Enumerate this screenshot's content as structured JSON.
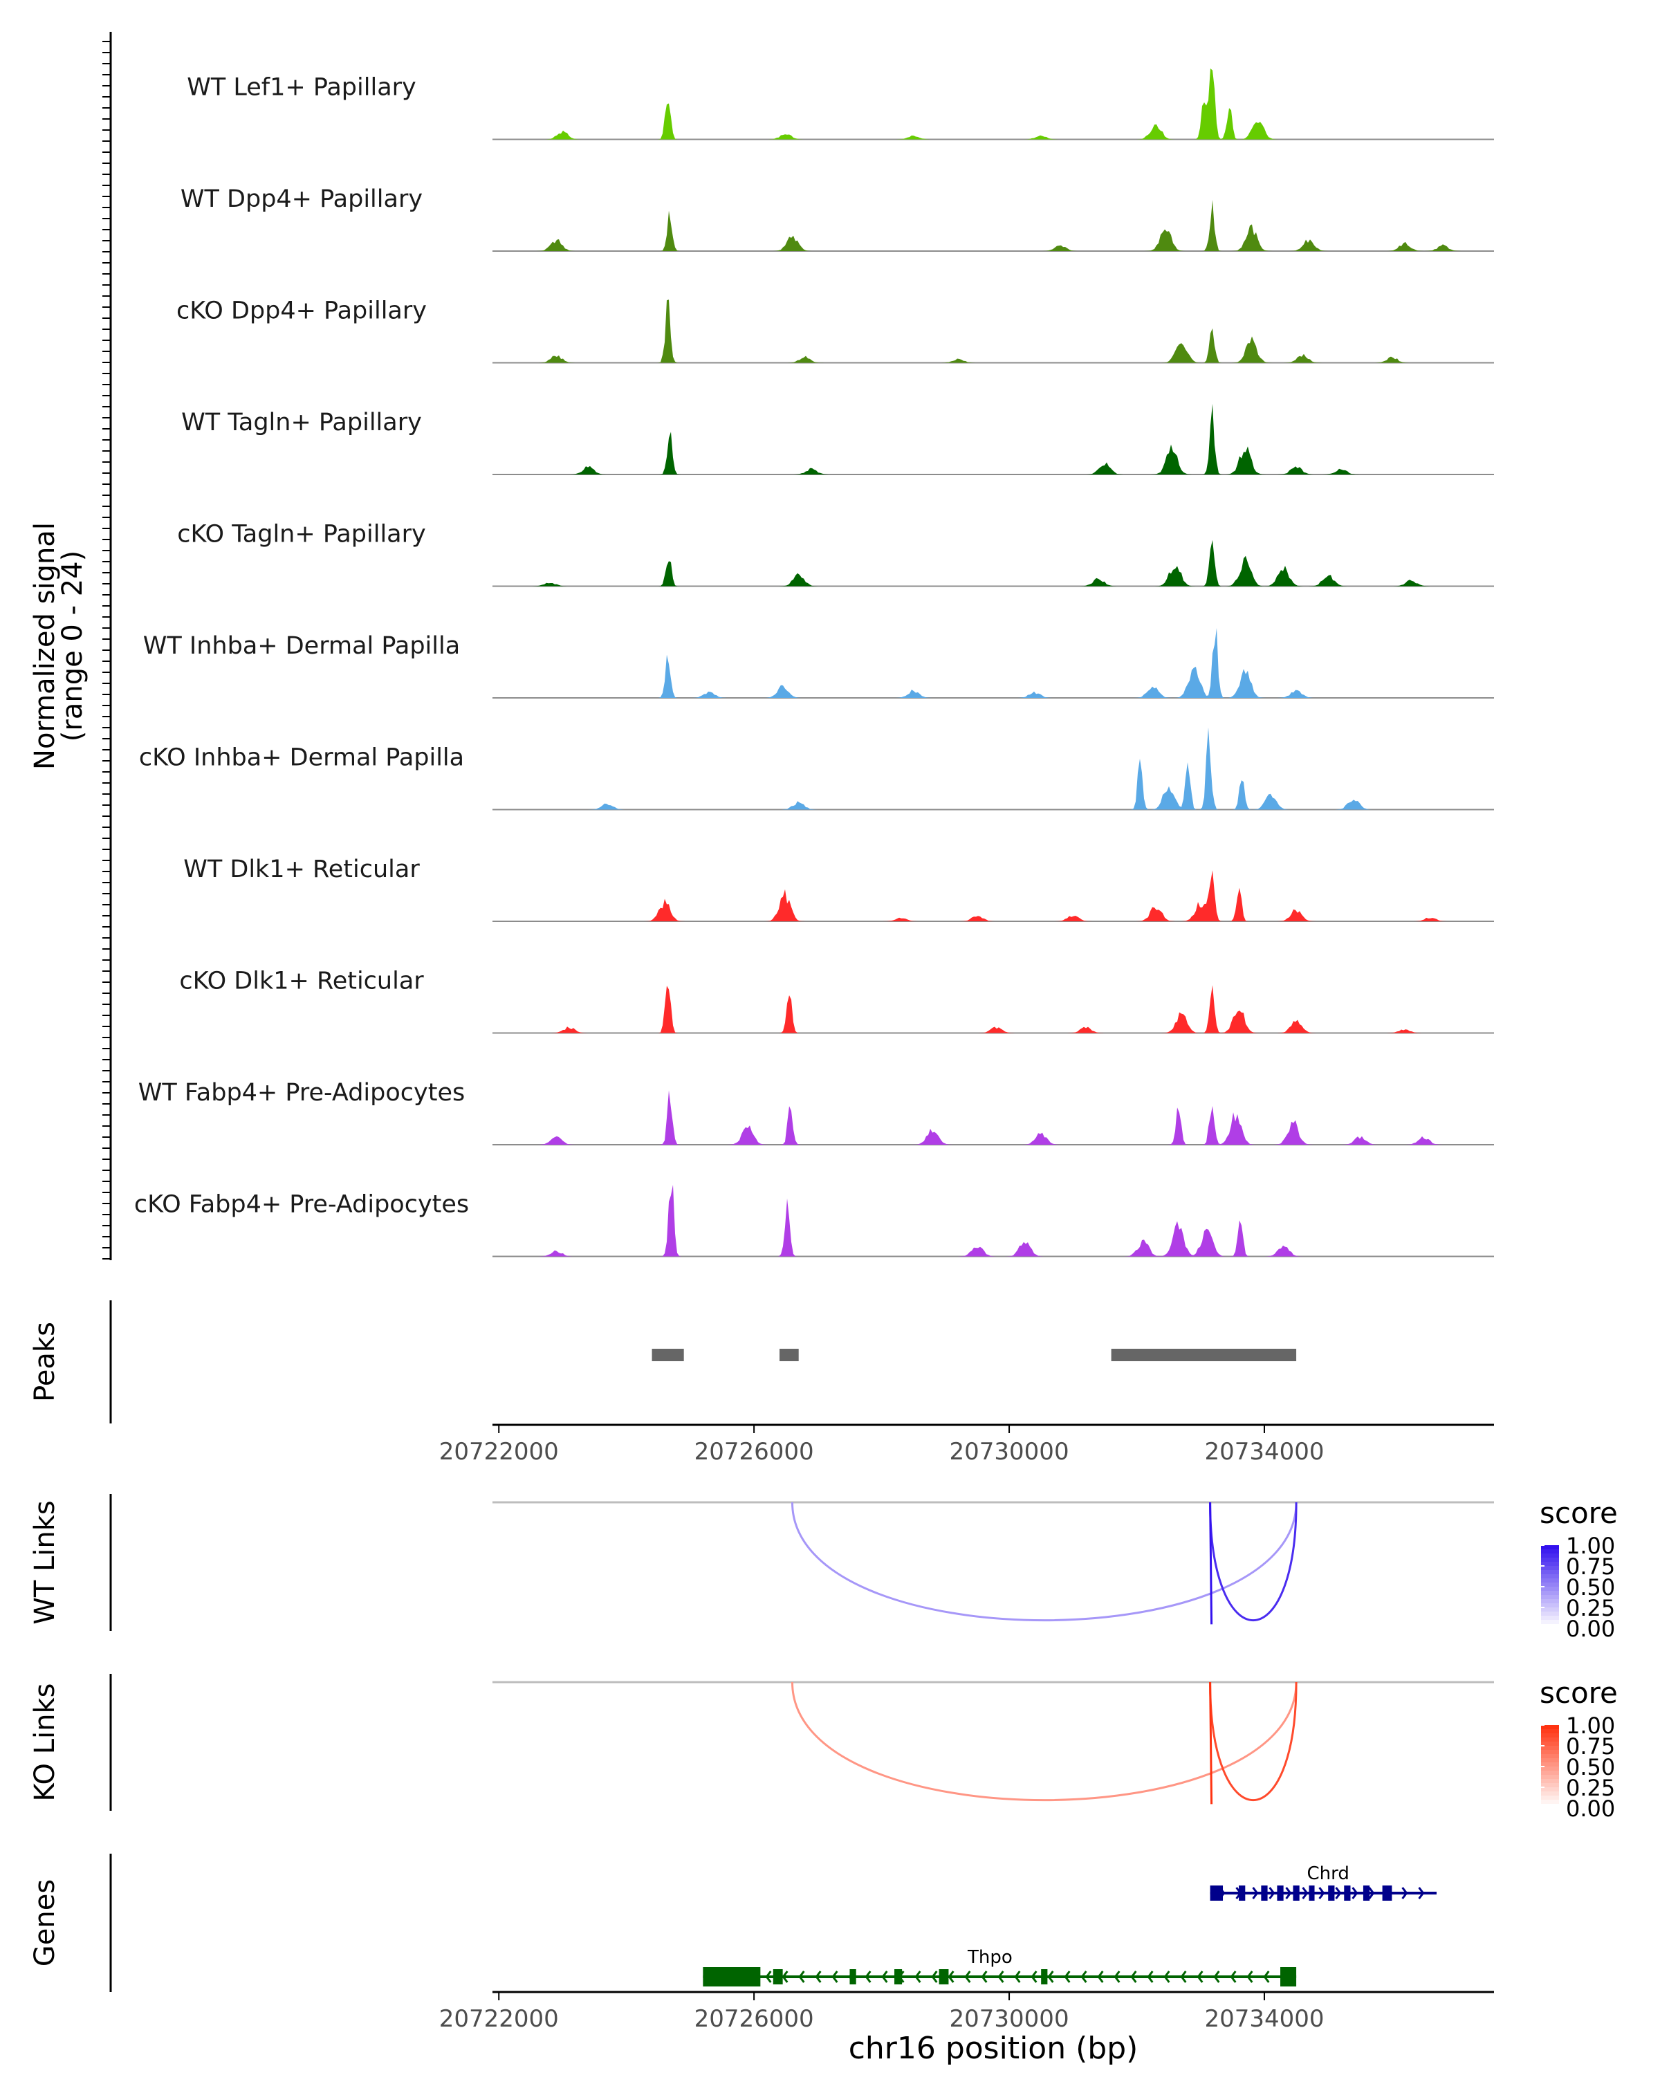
{
  "chart_data": {
    "type": "area",
    "title": "",
    "chromosome": "chr16",
    "xlim": [
      20721900,
      20737600
    ],
    "xticks": [
      20722000,
      20726000,
      20730000,
      20734000
    ],
    "xtick_labels": [
      "20722000",
      "20726000",
      "20730000",
      "20734000"
    ],
    "xlabel": "chr16 position (bp)",
    "ylabel": "Normalized signal",
    "ylabel_range": "(range 0 - 24)",
    "ylim": [
      0,
      24
    ],
    "tracks": [
      {
        "name": "WT Lef1+ Papillary",
        "color": "#66cc00",
        "peaks": [
          [
            20724650,
            13
          ],
          [
            20733180,
            22
          ],
          [
            20733050,
            10
          ],
          [
            20733450,
            9
          ],
          [
            20732300,
            4
          ],
          [
            20733900,
            5
          ],
          [
            20723000,
            2
          ],
          [
            20726500,
            1.5
          ],
          [
            20728500,
            1
          ],
          [
            20730500,
            1
          ]
        ]
      },
      {
        "name": "WT Dpp4+ Papillary",
        "color": "#4f8a10",
        "peaks": [
          [
            20724680,
            10
          ],
          [
            20733180,
            12
          ],
          [
            20732450,
            6
          ],
          [
            20733800,
            6
          ],
          [
            20726600,
            4
          ],
          [
            20722900,
            3
          ],
          [
            20734700,
            3
          ],
          [
            20736200,
            2
          ],
          [
            20730800,
            1.5
          ],
          [
            20736800,
            1.5
          ]
        ]
      },
      {
        "name": "cKO Dpp4+ Papillary",
        "color": "#4f8a10",
        "peaks": [
          [
            20724650,
            17
          ],
          [
            20733180,
            9
          ],
          [
            20732700,
            6
          ],
          [
            20733800,
            6
          ],
          [
            20722900,
            2
          ],
          [
            20726800,
            1.5
          ],
          [
            20734600,
            2
          ],
          [
            20736000,
            1.5
          ],
          [
            20729200,
            1
          ]
        ]
      },
      {
        "name": "WT Tagln+ Papillary",
        "color": "#006400",
        "peaks": [
          [
            20724680,
            13
          ],
          [
            20733180,
            16
          ],
          [
            20732550,
            7
          ],
          [
            20733700,
            7
          ],
          [
            20731500,
            3
          ],
          [
            20723400,
            2
          ],
          [
            20726900,
            1.5
          ],
          [
            20735200,
            1.5
          ],
          [
            20734500,
            2
          ]
        ]
      },
      {
        "name": "cKO Tagln+ Papillary",
        "color": "#006400",
        "peaks": [
          [
            20724660,
            9
          ],
          [
            20733180,
            12
          ],
          [
            20732600,
            6
          ],
          [
            20733700,
            7
          ],
          [
            20734300,
            5
          ],
          [
            20735000,
            3
          ],
          [
            20726700,
            3
          ],
          [
            20731400,
            2
          ],
          [
            20722800,
            1
          ],
          [
            20736300,
            1.5
          ]
        ]
      },
      {
        "name": "WT Inhba+ Dermal Papilla",
        "color": "#5aa9e6",
        "peaks": [
          [
            20724650,
            12
          ],
          [
            20733230,
            18
          ],
          [
            20732900,
            8
          ],
          [
            20733700,
            7
          ],
          [
            20732250,
            3
          ],
          [
            20726450,
            3
          ],
          [
            20728500,
            2
          ],
          [
            20725300,
            1.5
          ],
          [
            20730400,
            1.5
          ],
          [
            20734500,
            2
          ]
        ]
      },
      {
        "name": "cKO Inhba+ Dermal Papilla",
        "color": "#5aa9e6",
        "peaks": [
          [
            20732050,
            12
          ],
          [
            20733130,
            20
          ],
          [
            20732800,
            13
          ],
          [
            20733650,
            10
          ],
          [
            20732500,
            6
          ],
          [
            20734100,
            4
          ],
          [
            20735400,
            3
          ],
          [
            20723700,
            1.5
          ],
          [
            20726700,
            2
          ]
        ]
      },
      {
        "name": "WT Dlk1+ Reticular",
        "color": "#ff2a2a",
        "peaks": [
          [
            20724600,
            5
          ],
          [
            20726480,
            7
          ],
          [
            20733180,
            15
          ],
          [
            20733600,
            9
          ],
          [
            20732300,
            4
          ],
          [
            20733000,
            5
          ],
          [
            20734500,
            3
          ],
          [
            20728300,
            1
          ],
          [
            20729500,
            1.5
          ],
          [
            20731000,
            1.5
          ],
          [
            20736600,
            1
          ]
        ]
      },
      {
        "name": "cKO Dlk1+ Reticular",
        "color": "#ff2a2a",
        "peaks": [
          [
            20724650,
            16
          ],
          [
            20726550,
            12
          ],
          [
            20733180,
            13
          ],
          [
            20732700,
            5
          ],
          [
            20733600,
            7
          ],
          [
            20734500,
            3
          ],
          [
            20723100,
            1.5
          ],
          [
            20729800,
            1.5
          ],
          [
            20731200,
            1.5
          ],
          [
            20736200,
            1
          ]
        ]
      },
      {
        "name": "WT Fabp4+ Pre-Adipocytes",
        "color": "#b03ee6",
        "peaks": [
          [
            20724680,
            13
          ],
          [
            20726570,
            11
          ],
          [
            20725900,
            5
          ],
          [
            20733180,
            12
          ],
          [
            20732650,
            10
          ],
          [
            20733550,
            8
          ],
          [
            20734450,
            6
          ],
          [
            20728800,
            4
          ],
          [
            20730500,
            3
          ],
          [
            20735500,
            2
          ],
          [
            20722900,
            2
          ],
          [
            20736500,
            2
          ]
        ]
      },
      {
        "name": "cKO Fabp4+ Pre-Adipocytes",
        "color": "#b03ee6",
        "peaks": [
          [
            20724700,
            22
          ],
          [
            20726520,
            14
          ],
          [
            20733620,
            10
          ],
          [
            20732650,
            8
          ],
          [
            20732100,
            4
          ],
          [
            20733100,
            7
          ],
          [
            20729500,
            3
          ],
          [
            20730250,
            4
          ],
          [
            20734300,
            3
          ],
          [
            20722900,
            1.5
          ]
        ]
      }
    ],
    "peaks_track": {
      "label": "Peaks",
      "regions": [
        [
          20724400,
          20724900
        ],
        [
          20726400,
          20726700
        ],
        [
          20731600,
          20734500
        ]
      ]
    },
    "links": [
      {
        "label": "WT Links",
        "legend_title": "score",
        "legend_ticks": [
          "1.00",
          "0.75",
          "0.50",
          "0.25",
          "0.00"
        ],
        "color_high": "#3311ee",
        "color_low": "#ffffff",
        "arcs": [
          {
            "start": 20726600,
            "end": 20734500,
            "score": 0.25
          },
          {
            "start": 20733150,
            "end": 20734500,
            "score": 0.85
          },
          {
            "start": 20733150,
            "end": 20733170,
            "score": 1.0
          }
        ]
      },
      {
        "label": "KO Links",
        "legend_title": "score",
        "legend_ticks": [
          "1.00",
          "0.75",
          "0.50",
          "0.25",
          "0.00"
        ],
        "color_high": "#ff3311",
        "color_low": "#ffffff",
        "arcs": [
          {
            "start": 20726600,
            "end": 20734500,
            "score": 0.35
          },
          {
            "start": 20733150,
            "end": 20734500,
            "score": 0.85
          },
          {
            "start": 20733150,
            "end": 20733170,
            "score": 1.0
          }
        ]
      }
    ],
    "genes_track": {
      "label": "Genes",
      "genes": [
        {
          "name": "Chrd",
          "start": 20733150,
          "end": 20736700,
          "strand": "+",
          "color": "#00008b",
          "exons": [
            [
              20733150,
              20733350
            ],
            [
              20733600,
              20733700
            ],
            [
              20733950,
              20734050
            ],
            [
              20734200,
              20734300
            ],
            [
              20734450,
              20734550
            ],
            [
              20734700,
              20734780
            ],
            [
              20735000,
              20735100
            ],
            [
              20735250,
              20735350
            ],
            [
              20735550,
              20735650
            ],
            [
              20735850,
              20736000
            ]
          ]
        },
        {
          "name": "Thpo",
          "start": 20725200,
          "end": 20734500,
          "strand": "-",
          "color": "#006400",
          "exons": [
            [
              20725200,
              20726100
            ],
            [
              20726300,
              20726450
            ],
            [
              20727500,
              20727600
            ],
            [
              20728200,
              20728320
            ],
            [
              20728900,
              20729050
            ],
            [
              20730500,
              20730600
            ],
            [
              20734250,
              20734500
            ]
          ]
        }
      ]
    }
  }
}
